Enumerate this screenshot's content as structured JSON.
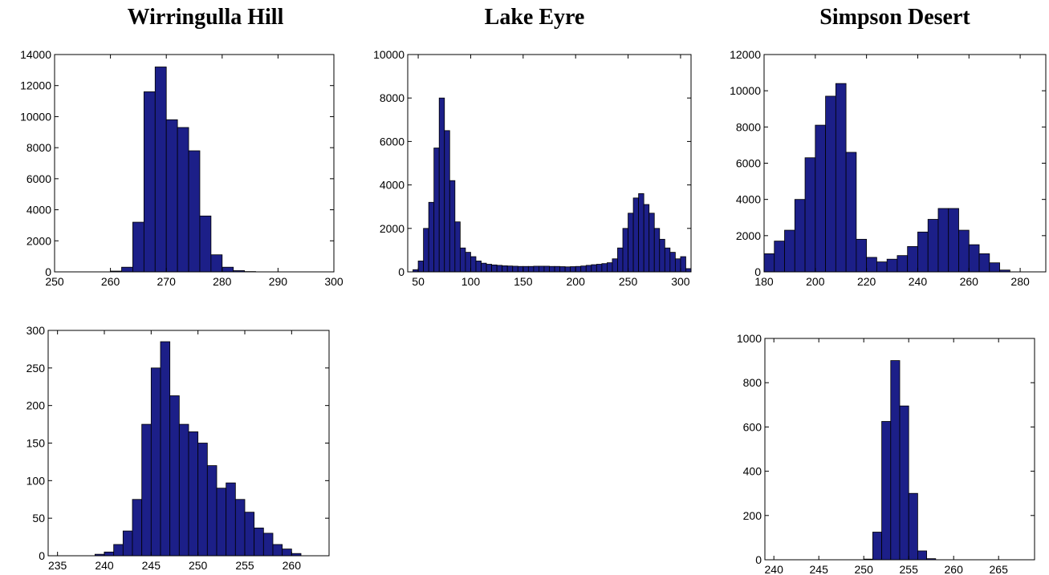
{
  "column_titles": [
    "Wirringulla Hill",
    "Lake Eyre",
    "Simpson Desert"
  ],
  "colors": {
    "bar_fill": "#1c1f88",
    "bar_edge": "#000000",
    "axes": "#000000",
    "background": "#ffffff"
  },
  "chart_data": [
    {
      "id": "wirringulla-top",
      "type": "bar",
      "title": "",
      "xlabel": "",
      "ylabel": "",
      "xlim": [
        250,
        300
      ],
      "ylim": [
        0,
        14000
      ],
      "xticks": [
        250,
        260,
        270,
        280,
        290,
        300
      ],
      "yticks": [
        0,
        2000,
        4000,
        6000,
        8000,
        10000,
        12000,
        14000
      ],
      "bin_width": 2,
      "bins": [
        252,
        254,
        256,
        258,
        260,
        262,
        264,
        266,
        268,
        270,
        272,
        274,
        276,
        278,
        280,
        282,
        284,
        286,
        288,
        290
      ],
      "values": [
        0,
        0,
        0,
        0,
        50,
        300,
        3200,
        11600,
        13200,
        9800,
        9300,
        7800,
        3600,
        1100,
        300,
        80,
        20,
        0,
        0,
        0
      ],
      "grid": false
    },
    {
      "id": "lake-eyre-top",
      "type": "bar",
      "title": "",
      "xlabel": "",
      "ylabel": "",
      "xlim": [
        40,
        310
      ],
      "ylim": [
        0,
        10000
      ],
      "xticks": [
        50,
        100,
        150,
        200,
        250,
        300
      ],
      "yticks": [
        0,
        2000,
        4000,
        6000,
        8000,
        10000
      ],
      "bin_width": 5,
      "bins": [
        40,
        45,
        50,
        55,
        60,
        65,
        70,
        75,
        80,
        85,
        90,
        95,
        100,
        105,
        110,
        115,
        120,
        125,
        130,
        135,
        140,
        145,
        150,
        155,
        160,
        165,
        170,
        175,
        180,
        185,
        190,
        195,
        200,
        205,
        210,
        215,
        220,
        225,
        230,
        235,
        240,
        245,
        250,
        255,
        260,
        265,
        270,
        275,
        280,
        285,
        290,
        295,
        300,
        305
      ],
      "values": [
        0,
        100,
        500,
        2000,
        3200,
        5700,
        8000,
        6500,
        4200,
        2300,
        1100,
        900,
        700,
        500,
        400,
        350,
        320,
        300,
        280,
        270,
        260,
        250,
        250,
        250,
        260,
        260,
        260,
        250,
        250,
        240,
        230,
        240,
        250,
        270,
        300,
        330,
        350,
        380,
        420,
        600,
        1100,
        2000,
        2700,
        3400,
        3600,
        3100,
        2700,
        2000,
        1500,
        1100,
        900,
        600,
        700,
        150
      ],
      "grid": false
    },
    {
      "id": "simpson-top",
      "type": "bar",
      "title": "",
      "xlabel": "",
      "ylabel": "",
      "xlim": [
        180,
        290
      ],
      "ylim": [
        0,
        12000
      ],
      "xticks": [
        180,
        200,
        220,
        240,
        260,
        280
      ],
      "yticks": [
        0,
        2000,
        4000,
        6000,
        8000,
        10000,
        12000
      ],
      "bin_width": 4,
      "bins": [
        180,
        184,
        188,
        192,
        196,
        200,
        204,
        208,
        212,
        216,
        220,
        224,
        228,
        232,
        236,
        240,
        244,
        248,
        252,
        256,
        260,
        264,
        268,
        272,
        276
      ],
      "values": [
        1000,
        1700,
        2300,
        4000,
        6300,
        8100,
        9700,
        10400,
        6600,
        1800,
        800,
        550,
        700,
        900,
        1400,
        2200,
        2900,
        3500,
        3500,
        2300,
        1500,
        1000,
        500,
        100,
        0
      ],
      "grid": false
    },
    {
      "id": "wirringulla-bottom",
      "type": "bar",
      "title": "",
      "xlabel": "",
      "ylabel": "",
      "xlim": [
        234,
        264
      ],
      "ylim": [
        0,
        300
      ],
      "xticks": [
        235,
        240,
        245,
        250,
        255,
        260
      ],
      "yticks": [
        0,
        50,
        100,
        150,
        200,
        250,
        300
      ],
      "bin_width": 1,
      "bins": [
        238,
        239,
        240,
        241,
        242,
        243,
        244,
        245,
        246,
        247,
        248,
        249,
        250,
        251,
        252,
        253,
        254,
        255,
        256,
        257,
        258,
        259,
        260
      ],
      "values": [
        0,
        2,
        5,
        15,
        33,
        75,
        175,
        250,
        285,
        213,
        175,
        165,
        150,
        120,
        90,
        97,
        75,
        58,
        37,
        30,
        15,
        9,
        3
      ],
      "grid": false
    },
    {
      "id": "simpson-bottom",
      "type": "bar",
      "title": "",
      "xlabel": "",
      "ylabel": "",
      "xlim": [
        239,
        269
      ],
      "ylim": [
        0,
        1000
      ],
      "xticks": [
        240,
        245,
        250,
        255,
        260,
        265
      ],
      "yticks": [
        0,
        200,
        400,
        600,
        800,
        1000
      ],
      "bin_width": 1,
      "bins": [
        249,
        250,
        251,
        252,
        253,
        254,
        255,
        256,
        257
      ],
      "values": [
        0,
        3,
        125,
        625,
        900,
        695,
        300,
        40,
        5
      ],
      "grid": false
    }
  ]
}
